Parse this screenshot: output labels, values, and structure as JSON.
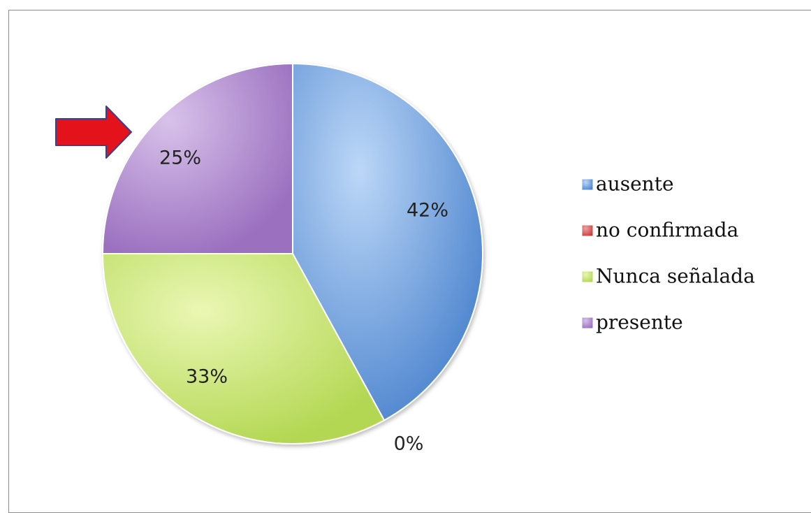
{
  "chart_data": {
    "type": "pie",
    "categories": [
      "ausente",
      "no confirmada",
      "Nunca señalada",
      "presente"
    ],
    "values": [
      42,
      0,
      33,
      25
    ],
    "data_labels": [
      "42%",
      "0%",
      "33%",
      "25%"
    ],
    "colors": [
      "#5a93d8",
      "#d94f4f",
      "#b8dc5a",
      "#a47ac4"
    ],
    "legend": {
      "position": "right",
      "entries": [
        "ausente",
        "no confirmada",
        "Nunca señalada",
        "presente"
      ]
    },
    "start_angle": "12 o'clock",
    "direction": "clockwise"
  },
  "annotation": {
    "type": "arrow",
    "color": "#e3121b",
    "points_to": "presente"
  }
}
